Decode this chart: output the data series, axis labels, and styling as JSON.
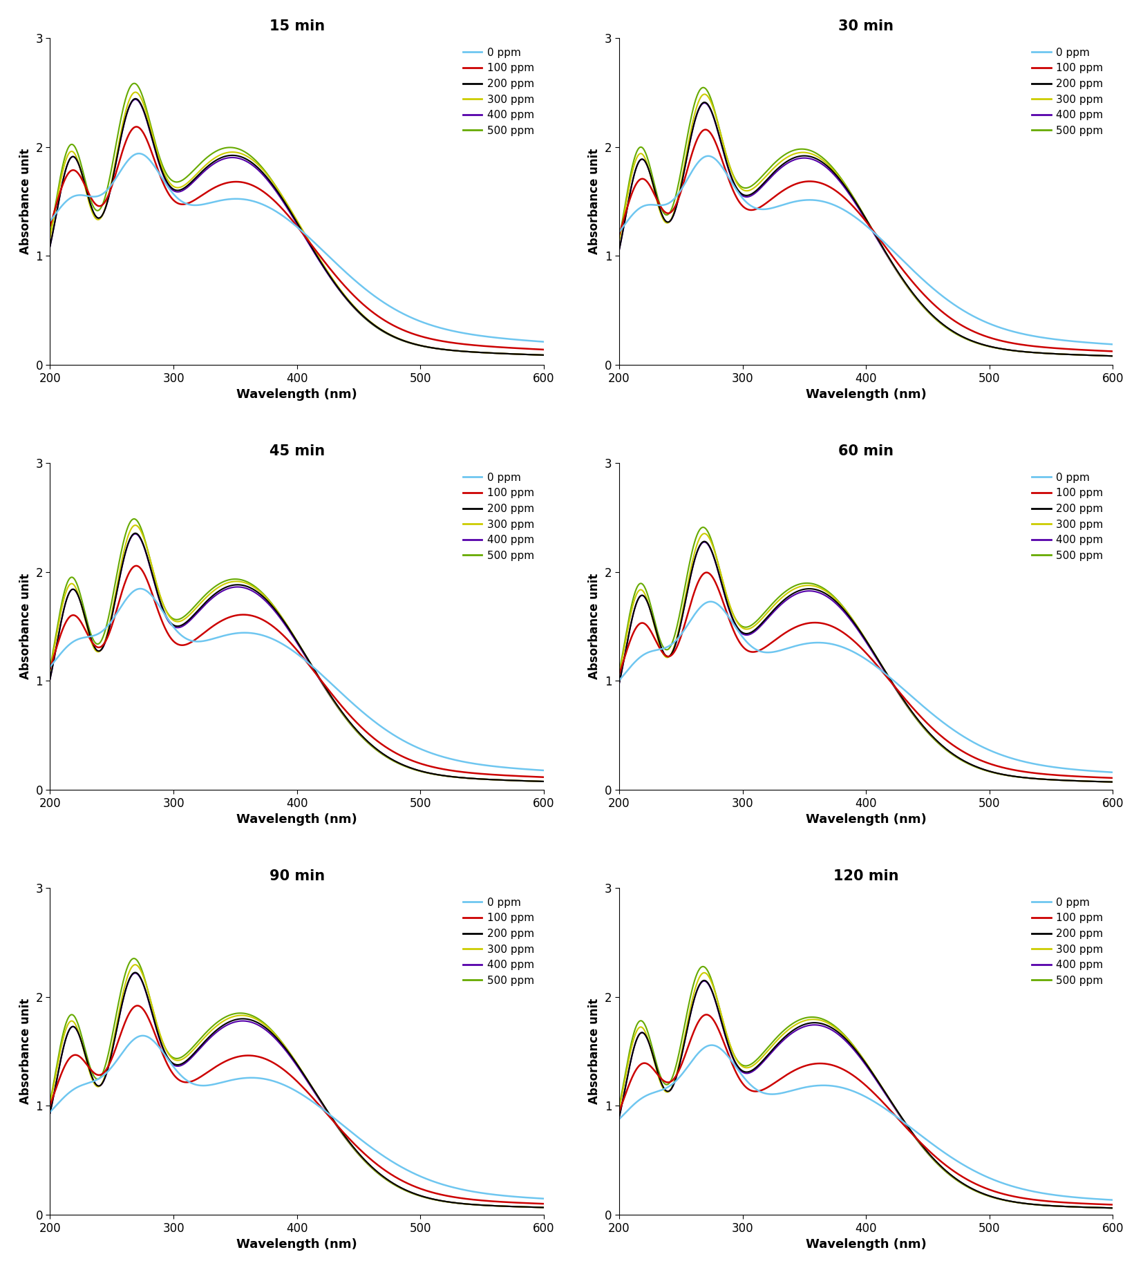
{
  "titles": [
    "15 min",
    "30 min",
    "45 min",
    "60 min",
    "90 min",
    "120 min"
  ],
  "legend_labels": [
    "0 ppm",
    "100 ppm",
    "200 ppm",
    "300 ppm",
    "400 ppm",
    "500 ppm"
  ],
  "colors": [
    "#6EC6F0",
    "#CC0000",
    "#000000",
    "#CCCC00",
    "#5500AA",
    "#66AA00"
  ],
  "xlabel": "Wavelength (nm)",
  "ylabel": "Absorbance unit",
  "xlim": [
    200,
    600
  ],
  "ylim": [
    0,
    3
  ],
  "yticks": [
    0,
    1,
    2,
    3
  ],
  "xticks": [
    200,
    300,
    400,
    500,
    600
  ]
}
